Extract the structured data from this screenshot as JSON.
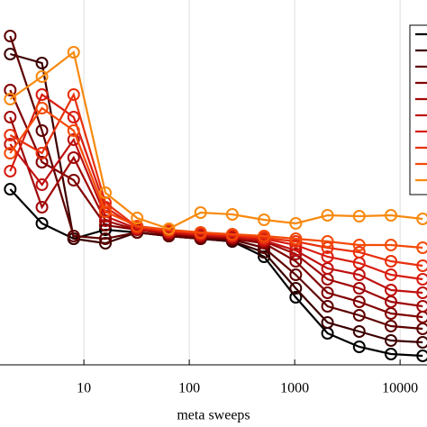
{
  "chart_data": {
    "type": "line",
    "xlabel": "meta sweeps",
    "xscale": "log",
    "x": [
      2,
      4,
      8,
      16,
      32,
      64,
      128,
      256,
      512,
      1024,
      2048,
      4096,
      8192,
      16384
    ],
    "xlim": [
      1.6,
      18000
    ],
    "xticks": [
      10,
      100,
      1000,
      10000
    ],
    "ylim": [
      0,
      405
    ],
    "grid": true,
    "legend": "upper right",
    "series": [
      {
        "color": "#000000",
        "values": [
          195,
          157,
          140,
          150,
          147,
          143,
          140,
          137,
          120,
          75,
          35,
          20,
          12,
          10
        ]
      },
      {
        "color": "#3c0000",
        "values": [
          345,
          335,
          140,
          135,
          147,
          143,
          140,
          137,
          125,
          85,
          47,
          37,
          27,
          25
        ]
      },
      {
        "color": "#5e0000",
        "values": [
          365,
          260,
          143,
          140,
          147,
          143,
          140,
          139,
          130,
          100,
          65,
          55,
          43,
          40
        ]
      },
      {
        "color": "#800000",
        "values": [
          305,
          225,
          205,
          155,
          150,
          145,
          142,
          140,
          135,
          115,
          80,
          70,
          57,
          53
        ]
      },
      {
        "color": "#a00808",
        "values": [
          275,
          175,
          230,
          160,
          150,
          146,
          143,
          141,
          137,
          123,
          95,
          85,
          70,
          65
        ]
      },
      {
        "color": "#bf1010",
        "values": [
          245,
          200,
          250,
          165,
          151,
          147,
          144,
          142,
          138,
          127,
          107,
          100,
          83,
          80
        ]
      },
      {
        "color": "#d81c10",
        "values": [
          215,
          300,
          275,
          175,
          152,
          148,
          145,
          143,
          140,
          133,
          120,
          113,
          100,
          95
        ]
      },
      {
        "color": "#e8300c",
        "values": [
          255,
          235,
          300,
          180,
          153,
          149,
          146,
          144,
          141,
          137,
          130,
          125,
          115,
          110
        ]
      },
      {
        "color": "#f44a08",
        "values": [
          235,
          285,
          260,
          170,
          154,
          150,
          147,
          145,
          143,
          140,
          137,
          133,
          133,
          130
        ]
      },
      {
        "color": "#f7890f",
        "values": [
          295,
          320,
          347,
          191,
          163,
          151,
          169,
          167,
          161,
          157,
          166,
          165,
          166,
          162
        ]
      }
    ]
  }
}
